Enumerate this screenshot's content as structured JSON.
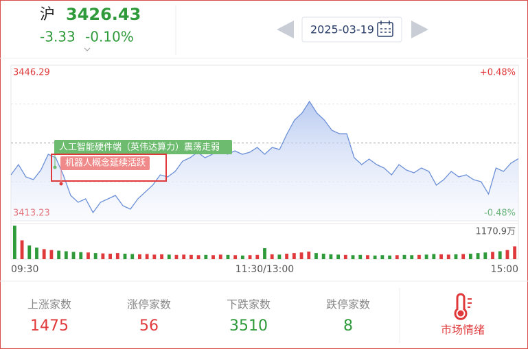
{
  "header": {
    "index": "沪",
    "price": "3426.43",
    "change": "-3.33",
    "change_pct": "-0.10%",
    "date": "2025-03-19"
  },
  "chart_data": {
    "type": "line",
    "color": "#6b8fd6",
    "ylim": [
      3413.23,
      3446.29
    ],
    "yticks": [
      3413.23,
      3446.29
    ],
    "y2lim": [
      -0.48,
      0.48
    ],
    "y2ticks": [
      {
        "value": -0.48,
        "label": "-0.48%"
      },
      {
        "value": 0.48,
        "label": "+0.48%"
      }
    ],
    "x_labels": [
      "09:30",
      "11:30/13:00",
      "15:00"
    ],
    "values": [
      3422.99,
      3425.17,
      3422.55,
      3421.97,
      3424.01,
      3427.36,
      3426.63,
      3422.99,
      3418.62,
      3417.16,
      3417.89,
      3414.98,
      3417.16,
      3417.89,
      3418.62,
      3416.43,
      3415.71,
      3417.89,
      3419.35,
      3420.8,
      3422.99,
      3422.55,
      3423.72,
      3425.9,
      3426.63,
      3427.79,
      3426.63,
      3427.36,
      3428.81,
      3427.36,
      3428.08,
      3427.36,
      3427.79,
      3428.81,
      3427.36,
      3428.81,
      3428.38,
      3431.73,
      3434.64,
      3436.1,
      3438.57,
      3436.1,
      3434.64,
      3432.45,
      3431.73,
      3431.73,
      3426.63,
      3425.17,
      3426.34,
      3425.17,
      3424.44,
      3422.99,
      3425.17,
      3424.01,
      3423.42,
      3424.44,
      3423.72,
      3420.8,
      3421.97,
      3423.72,
      3422.55,
      3422.99,
      3421.97,
      3421.53,
      3418.91,
      3424.44,
      3423.72,
      3425.46,
      3426.43
    ],
    "annotations": [
      {
        "text": "人工智能硬件端（英伟达算力）震荡走弱",
        "color": "#6cbb6e"
      },
      {
        "text": "机器人概念延续活跃",
        "color": "#f08a8a"
      }
    ],
    "volume": {
      "type": "bar",
      "ylim": [
        0,
        1170.9
      ],
      "yticks": [
        {
          "value": 1170.9,
          "label": "1170.9万"
        }
      ],
      "up_color": "#e0393b",
      "down_color": "#2e9a3a",
      "values": [
        1100,
        620,
        450,
        380,
        330,
        300,
        280,
        260,
        240,
        230,
        220,
        200,
        190,
        180,
        200,
        180,
        170,
        160,
        170,
        150,
        160,
        150,
        140,
        150,
        140,
        130,
        140,
        130,
        150,
        140,
        130,
        120,
        130,
        140,
        360,
        160,
        150,
        180,
        200,
        220,
        250,
        200,
        180,
        160,
        150,
        140,
        130,
        140,
        130,
        120,
        130,
        120,
        130,
        140,
        130,
        140,
        150,
        170,
        160,
        150,
        160,
        170,
        180,
        200,
        220,
        240,
        260,
        300,
        420
      ]
    }
  },
  "stats": [
    {
      "label": "上涨家数",
      "value": 1475,
      "color": "#e0393b"
    },
    {
      "label": "涨停家数",
      "value": 56,
      "color": "#e0393b"
    },
    {
      "label": "下跌家数",
      "value": 3510,
      "color": "#2e9a3a"
    },
    {
      "label": "跌停家数",
      "value": 8,
      "color": "#2e9a3a"
    }
  ],
  "sentiment": {
    "label": "市场情绪",
    "color": "#e0393b"
  }
}
